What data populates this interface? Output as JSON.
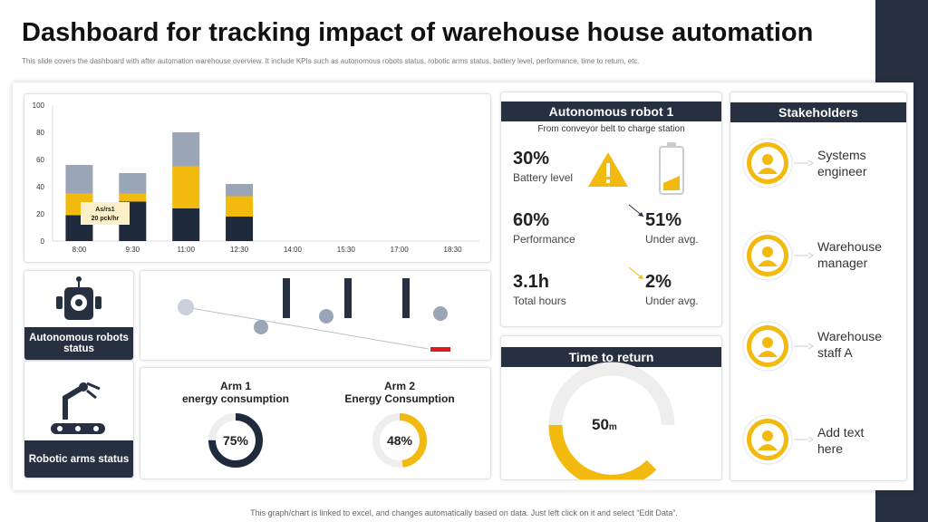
{
  "header": {
    "title": "Dashboard for tracking impact of warehouse house automation",
    "subtitle": "This slide covers the dashboard with after automation warehouse overview. It include KPIs such as autonomous robots status, robotic arms status, battery level, performance, time to return, etc."
  },
  "chart_data": {
    "type": "bar",
    "stacked": true,
    "categories": [
      "8:00",
      "9:30",
      "11:00",
      "12:30",
      "14:00",
      "15:30",
      "17:00",
      "18:30"
    ],
    "series": [
      {
        "color": "#1f2a3c",
        "values": [
          19,
          29,
          24,
          18,
          null,
          null,
          null,
          null
        ]
      },
      {
        "color": "#f2b90f",
        "values": [
          16,
          6,
          31,
          15,
          null,
          null,
          null,
          null
        ]
      },
      {
        "color": "#9aa5b8",
        "values": [
          21,
          15,
          25,
          9,
          null,
          null,
          null,
          null
        ]
      }
    ],
    "ylim": [
      0,
      100
    ],
    "yticks": [
      0,
      20,
      40,
      60,
      80,
      100
    ],
    "grid": false,
    "annotation": [
      "As/rs1",
      "20 pck/hr"
    ]
  },
  "status": {
    "robots": "Autonomous robots status",
    "arms": "Robotic arms status"
  },
  "arms": [
    {
      "title": "Arm 1 energy consumption",
      "value": 75,
      "value_label": "75%",
      "color": "#1f2a3c"
    },
    {
      "title": "Arm 2 Energy Consumption",
      "value": 48,
      "value_label": "48%",
      "color": "#f2b90f"
    }
  ],
  "robot": {
    "title": "Autonomous robot 1",
    "subtitle": "From conveyor belt to charge station",
    "kpis": [
      {
        "value": "30%",
        "label": "Battery level"
      },
      {
        "value": "60%",
        "label": "Performance"
      },
      {
        "value": "3.1h",
        "label": "Total hours"
      },
      {
        "value": "51%",
        "label": "Under avg."
      },
      {
        "value": "2%",
        "label": "Under avg."
      }
    ]
  },
  "time_to_return": {
    "title": "Time to return",
    "value": "50",
    "unit": "m"
  },
  "stakeholders": {
    "title": "Stakeholders",
    "items": [
      "Systems engineer",
      "Warehouse manager",
      "Warehouse staff A",
      "Add text here"
    ]
  },
  "footer": "This graph/chart is linked to excel, and changes automatically based on data. Just left click on it and select “Edit Data”."
}
